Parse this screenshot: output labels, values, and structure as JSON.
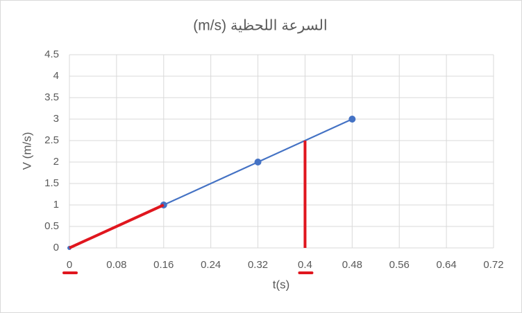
{
  "chart_data": {
    "type": "scatter-line",
    "title": "السرعة اللحظية (m/s)",
    "x_label": "t(s)",
    "y_label": "V (m/s)",
    "series": [
      {
        "color": "#4472c4",
        "x": [
          0,
          0.16,
          0.32,
          0.48
        ],
        "values": [
          0,
          1,
          2,
          3
        ]
      }
    ],
    "highlights": [
      {
        "color": "#e0161e",
        "x": [
          0,
          0.16
        ],
        "values": [
          0,
          1
        ]
      },
      {
        "color": "#e0161e",
        "x": [
          0.4,
          0.4
        ],
        "values": [
          0,
          2.5
        ]
      }
    ],
    "xlim": [
      0,
      0.72
    ],
    "xticks": [
      0,
      0.08,
      0.16,
      0.24,
      0.32,
      0.4,
      0.48,
      0.56,
      0.64,
      0.72
    ],
    "ylim": [
      0,
      4.5
    ],
    "yticks": [
      0,
      0.5,
      1,
      1.5,
      2,
      2.5,
      3,
      3.5,
      4,
      4.5
    ],
    "grid": true
  }
}
